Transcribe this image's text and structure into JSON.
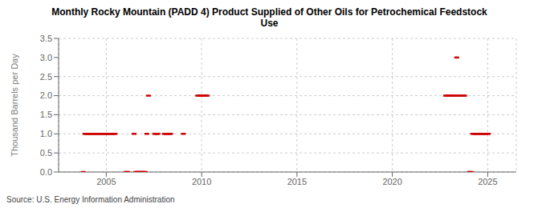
{
  "chart_data": {
    "type": "scatter",
    "title": "Monthly Rocky Mountain (PADD 4) Product Supplied of Other Oils for Petrochemical Feedstock\nUse",
    "ylabel": "Thousand Barrels per Day",
    "annotations": [
      "Source: U.S. Energy Information Administration"
    ],
    "color": "#cc0000",
    "marker": "dash",
    "grid": true,
    "xlim": [
      2002.5,
      2026.5
    ],
    "xticks": [
      2005,
      2010,
      2015,
      2020,
      2025
    ],
    "ylim": [
      0,
      3.5
    ],
    "yticks": [
      {
        "value": 0,
        "label": "0.0"
      },
      0.5,
      {
        "value": 1,
        "label": "1.0"
      },
      1.5,
      {
        "value": 2,
        "label": "2.0"
      },
      2.5,
      {
        "value": 3,
        "label": "3.0"
      },
      3.5
    ],
    "x": [
      2003.7916666666667,
      2003.875,
      2003.9583333333333,
      2004.0416666666667,
      2004.125,
      2004.2083333333333,
      2004.2916666666667,
      2004.375,
      2004.4583333333333,
      2004.5416666666667,
      2004.625,
      2004.7083333333333,
      2004.7916666666667,
      2004.875,
      2004.9583333333333,
      2005.0416666666667,
      2005.125,
      2005.2083333333333,
      2005.2916666666667,
      2005.375,
      2005.4583333333333,
      2006.0416666666667,
      2006.125,
      2006.4583333333333,
      2006.5416666666667,
      2006.625,
      2006.7083333333333,
      2006.7916666666667,
      2006.875,
      2006.9583333333333,
      2007.0416666666667,
      2007.125,
      2007.2083333333333,
      2007.5416666666667,
      2007.625,
      2007.7083333333333,
      2008.0416666666667,
      2008.125,
      2008.2083333333333,
      2008.2916666666667,
      2008.375,
      2009.0416666666667,
      2009.7916666666667,
      2009.875,
      2009.9583333333333,
      2010.0416666666667,
      2010.125,
      2010.2083333333333,
      2010.2916666666667,
      2022.7916666666667,
      2022.875,
      2022.9583333333333,
      2023.0416666666667,
      2023.125,
      2023.2083333333333,
      2023.2916666666667,
      2023.375,
      2023.4583333333333,
      2023.5416666666667,
      2023.7083333333333,
      2023.7916666666667,
      2024.0416666666667,
      2024.125,
      2024.2083333333333,
      2024.2916666666667,
      2024.375,
      2024.4583333333333,
      2024.5416666666667,
      2024.625,
      2024.7083333333333,
      2024.7916666666667,
      2024.875,
      2024.9583333333333,
      2025.0416666666667
    ],
    "values": [
      0,
      1,
      1,
      1,
      1,
      1,
      1,
      1,
      1,
      1,
      1,
      1,
      1,
      1,
      1,
      1,
      1,
      1,
      1,
      1,
      1,
      0,
      0,
      1,
      0,
      0,
      0,
      0,
      0,
      0,
      0,
      1,
      2,
      1,
      1,
      1,
      1,
      1,
      1,
      1,
      1,
      1,
      2,
      2,
      2,
      2,
      2,
      2,
      2,
      2,
      2,
      2,
      2,
      2,
      2,
      2,
      3,
      2,
      2,
      2,
      2,
      0,
      0,
      1,
      1,
      1,
      1,
      1,
      1,
      1,
      1,
      1,
      1,
      1
    ]
  }
}
